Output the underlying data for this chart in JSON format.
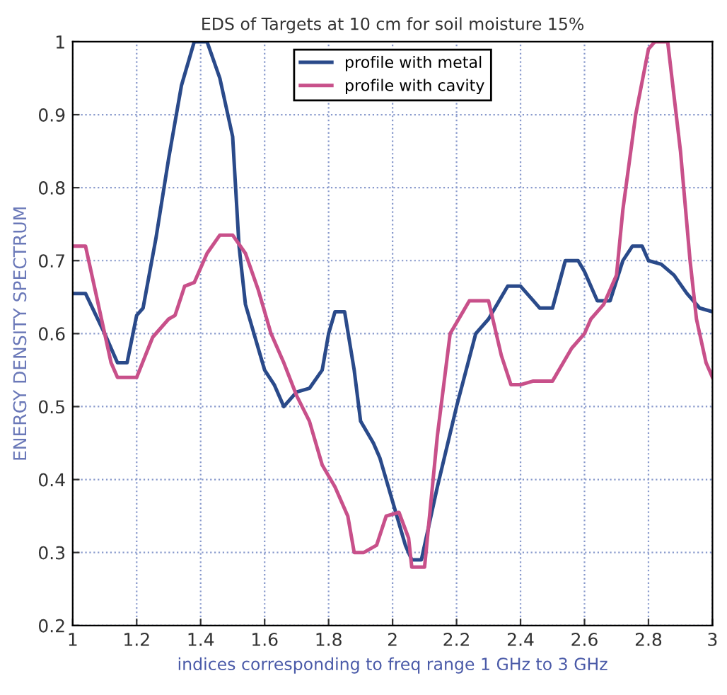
{
  "chart_data": {
    "type": "line",
    "title": "EDS of Targets at 10 cm for soil moisture 15%",
    "xlabel": "indices corresponding to freq range 1 GHz to 3 GHz",
    "ylabel": "ENERGY DENSITY SPECTRUM",
    "xlim": [
      1,
      3
    ],
    "ylim": [
      0.2,
      1
    ],
    "xticks": [
      1,
      1.2,
      1.4,
      1.6,
      1.8,
      2,
      2.2,
      2.4,
      2.6,
      2.8,
      3
    ],
    "yticks": [
      0.2,
      0.3,
      0.4,
      0.5,
      0.6,
      0.7,
      0.8,
      0.9,
      1
    ],
    "grid": true,
    "legend": "top",
    "line_style": "solid",
    "series": [
      {
        "name": "profile with metal",
        "color": "#2a4a8a",
        "x": [
          1.0,
          1.04,
          1.1,
          1.14,
          1.17,
          1.2,
          1.22,
          1.26,
          1.3,
          1.34,
          1.38,
          1.42,
          1.46,
          1.5,
          1.52,
          1.54,
          1.58,
          1.6,
          1.63,
          1.66,
          1.7,
          1.74,
          1.78,
          1.8,
          1.82,
          1.85,
          1.88,
          1.9,
          1.94,
          1.96,
          2.0,
          2.04,
          2.06,
          2.09,
          2.14,
          2.2,
          2.26,
          2.3,
          2.36,
          2.4,
          2.44,
          2.46,
          2.5,
          2.54,
          2.58,
          2.6,
          2.64,
          2.68,
          2.72,
          2.75,
          2.78,
          2.8,
          2.84,
          2.88,
          2.92,
          2.96,
          3.0
        ],
        "values": [
          0.655,
          0.655,
          0.6,
          0.56,
          0.56,
          0.625,
          0.635,
          0.73,
          0.84,
          0.94,
          1.0,
          1.0,
          0.95,
          0.87,
          0.72,
          0.64,
          0.58,
          0.55,
          0.53,
          0.5,
          0.52,
          0.525,
          0.55,
          0.6,
          0.63,
          0.63,
          0.55,
          0.48,
          0.45,
          0.43,
          0.37,
          0.31,
          0.29,
          0.29,
          0.39,
          0.5,
          0.6,
          0.62,
          0.665,
          0.665,
          0.645,
          0.635,
          0.635,
          0.7,
          0.7,
          0.685,
          0.645,
          0.645,
          0.7,
          0.72,
          0.72,
          0.7,
          0.695,
          0.68,
          0.655,
          0.635,
          0.63
        ]
      },
      {
        "name": "profile with cavity",
        "color": "#c8508a",
        "x": [
          1.0,
          1.04,
          1.08,
          1.12,
          1.14,
          1.2,
          1.25,
          1.3,
          1.32,
          1.35,
          1.38,
          1.42,
          1.46,
          1.5,
          1.54,
          1.58,
          1.62,
          1.66,
          1.7,
          1.74,
          1.78,
          1.82,
          1.86,
          1.88,
          1.91,
          1.95,
          1.98,
          2.02,
          2.05,
          2.06,
          2.1,
          2.14,
          2.18,
          2.2,
          2.24,
          2.3,
          2.34,
          2.37,
          2.4,
          2.44,
          2.5,
          2.56,
          2.6,
          2.62,
          2.66,
          2.7,
          2.72,
          2.76,
          2.8,
          2.82,
          2.86,
          2.9,
          2.93,
          2.95,
          2.98,
          3.0
        ],
        "values": [
          0.72,
          0.72,
          0.64,
          0.56,
          0.54,
          0.54,
          0.595,
          0.62,
          0.625,
          0.665,
          0.67,
          0.71,
          0.735,
          0.735,
          0.71,
          0.66,
          0.6,
          0.56,
          0.515,
          0.48,
          0.42,
          0.39,
          0.35,
          0.3,
          0.3,
          0.31,
          0.35,
          0.355,
          0.32,
          0.28,
          0.28,
          0.46,
          0.6,
          0.615,
          0.645,
          0.645,
          0.57,
          0.53,
          0.53,
          0.535,
          0.535,
          0.58,
          0.6,
          0.62,
          0.64,
          0.68,
          0.77,
          0.9,
          0.99,
          1.0,
          1.0,
          0.85,
          0.7,
          0.62,
          0.56,
          0.54
        ]
      }
    ]
  }
}
